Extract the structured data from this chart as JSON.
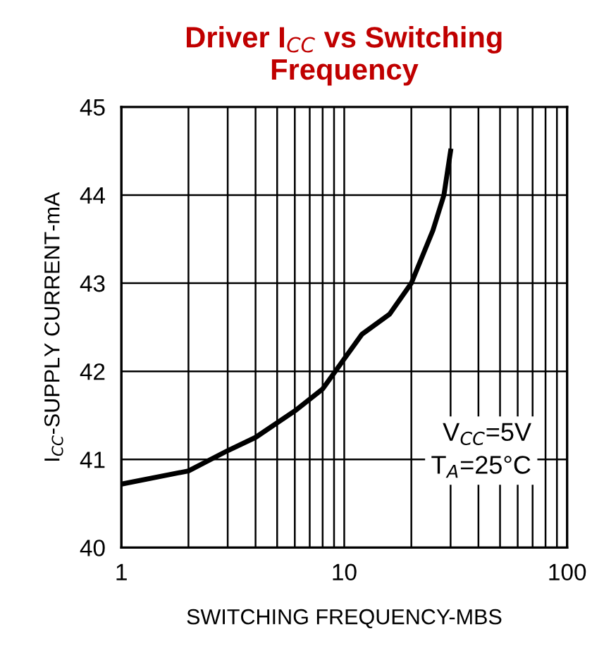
{
  "chart_data": {
    "type": "line",
    "title": "Driver I$_{CC}$ vs Switching\nFrequency",
    "xlabel": "SWITCHING FREQUENCY-MBS",
    "ylabel": "I$_{CC}$-SUPPLY CURRENT-mA",
    "x": [
      1,
      2,
      3,
      4,
      6,
      8,
      12,
      16,
      20,
      25,
      28,
      30
    ],
    "series": [
      {
        "color": "#000000",
        "values": [
          40.72,
          40.87,
          41.1,
          41.25,
          41.55,
          41.8,
          42.42,
          42.65,
          43.0,
          43.6,
          44.0,
          44.5
        ]
      }
    ],
    "log": "x",
    "xlim": [
      1,
      100
    ],
    "xticks": [
      1,
      10,
      100
    ],
    "ylim": [
      40,
      45
    ],
    "yticks": [
      40,
      41,
      42,
      43,
      44,
      45
    ],
    "grid": true,
    "marker": "none",
    "line_style": "solid",
    "annotations": [
      "V$_{CC}$=5V\nT$_{A}$=25°C"
    ]
  }
}
